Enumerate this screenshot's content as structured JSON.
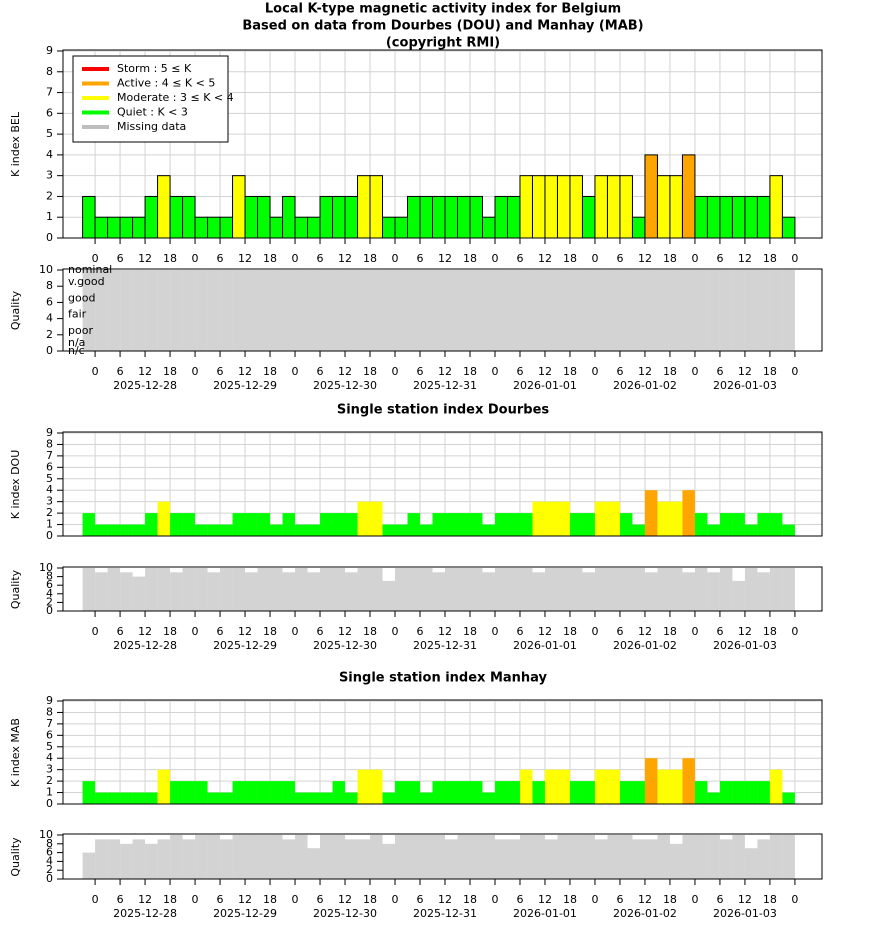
{
  "x_axis": {
    "xlim": [
      -7.7,
      174.5
    ],
    "bins": [
      -3,
      0,
      3,
      6,
      9,
      12,
      15,
      18,
      21,
      24,
      27,
      30,
      33,
      36,
      39,
      42,
      45,
      48,
      51,
      54,
      57,
      60,
      63,
      66,
      69,
      72,
      75,
      78,
      81,
      84,
      87,
      90,
      93,
      96,
      99,
      102,
      105,
      108,
      111,
      114,
      117,
      120,
      123,
      126,
      129,
      132,
      135,
      138,
      141,
      144,
      147,
      150,
      153,
      156,
      159,
      162,
      165,
      168
    ],
    "xticks": [
      0,
      6,
      12,
      18,
      {
        "value": 24,
        "label": "0"
      },
      {
        "value": 30,
        "label": "6"
      },
      {
        "value": 36,
        "label": "12"
      },
      {
        "value": 42,
        "label": "18"
      },
      {
        "value": 48,
        "label": "0"
      },
      {
        "value": 54,
        "label": "6"
      },
      {
        "value": 60,
        "label": "12"
      },
      {
        "value": 66,
        "label": "18"
      },
      {
        "value": 72,
        "label": "0"
      },
      {
        "value": 78,
        "label": "6"
      },
      {
        "value": 84,
        "label": "12"
      },
      {
        "value": 90,
        "label": "18"
      },
      {
        "value": 96,
        "label": "0"
      },
      {
        "value": 102,
        "label": "6"
      },
      {
        "value": 108,
        "label": "12"
      },
      {
        "value": 114,
        "label": "18"
      },
      {
        "value": 120,
        "label": "0"
      },
      {
        "value": 126,
        "label": "6"
      },
      {
        "value": 132,
        "label": "12"
      },
      {
        "value": 138,
        "label": "18"
      },
      {
        "value": 144,
        "label": "0"
      },
      {
        "value": 150,
        "label": "6"
      },
      {
        "value": 156,
        "label": "12"
      },
      {
        "value": 162,
        "label": "18"
      },
      {
        "value": 168,
        "label": "0"
      }
    ],
    "dates": [
      {
        "value": 12,
        "label": "2025-12-28"
      },
      {
        "value": 36,
        "label": "2025-12-29"
      },
      {
        "value": 60,
        "label": "2025-12-30"
      },
      {
        "value": 84,
        "label": "2025-12-31"
      },
      {
        "value": 108,
        "label": "2026-01-01"
      },
      {
        "value": 132,
        "label": "2026-01-02"
      },
      {
        "value": 156,
        "label": "2026-01-03"
      }
    ]
  },
  "chart_data": [
    {
      "type": "bar",
      "title": [
        "Local K-type magnetic activity index for Belgium",
        "Based on data from Dourbes (DOU) and Manhay (MAB)",
        "(copyright RMI)"
      ],
      "ylabel": "K index BEL",
      "ylim": [
        0,
        9
      ],
      "yticks": [
        0,
        1,
        2,
        3,
        4,
        5,
        6,
        7,
        8,
        9
      ],
      "grid": true,
      "outline": "#000000",
      "values": [
        2,
        1,
        1,
        1,
        1,
        2,
        3,
        2,
        2,
        1,
        1,
        1,
        3,
        2,
        2,
        1,
        2,
        1,
        1,
        2,
        2,
        2,
        3,
        3,
        1,
        1,
        2,
        2,
        2,
        2,
        2,
        2,
        1,
        2,
        2,
        3,
        3,
        3,
        3,
        3,
        2,
        3,
        3,
        3,
        1,
        4,
        3,
        3,
        4,
        2,
        2,
        2,
        2,
        2,
        2,
        3,
        1
      ],
      "colors": [
        "#00ff00",
        "#00ff00",
        "#00ff00",
        "#00ff00",
        "#00ff00",
        "#00ff00",
        "#ffff00",
        "#00ff00",
        "#00ff00",
        "#00ff00",
        "#00ff00",
        "#00ff00",
        "#ffff00",
        "#00ff00",
        "#00ff00",
        "#00ff00",
        "#00ff00",
        "#00ff00",
        "#00ff00",
        "#00ff00",
        "#00ff00",
        "#00ff00",
        "#ffff00",
        "#ffff00",
        "#00ff00",
        "#00ff00",
        "#00ff00",
        "#00ff00",
        "#00ff00",
        "#00ff00",
        "#00ff00",
        "#00ff00",
        "#00ff00",
        "#00ff00",
        "#00ff00",
        "#ffff00",
        "#ffff00",
        "#ffff00",
        "#ffff00",
        "#ffff00",
        "#00ff00",
        "#ffff00",
        "#ffff00",
        "#ffff00",
        "#00ff00",
        "#ffa500",
        "#ffff00",
        "#ffff00",
        "#ffa500",
        "#00ff00",
        "#00ff00",
        "#00ff00",
        "#00ff00",
        "#00ff00",
        "#00ff00",
        "#ffff00",
        "#00ff00"
      ],
      "legend": {
        "position": "top-left",
        "items": [
          {
            "name": "Storm : 5 ≤ K",
            "color": "#ff0000"
          },
          {
            "name": "Active : 4 ≤ K < 5",
            "color": "#ffa500"
          },
          {
            "name": "Moderate : 3 ≤ K < 4",
            "color": "#ffff00"
          },
          {
            "name": "Quiet : K < 3",
            "color": "#00ff00"
          },
          {
            "name": "Missing data",
            "color": "#bebebe"
          }
        ]
      }
    },
    {
      "type": "bar",
      "ylabel": "Quality",
      "ylim": [
        0,
        10
      ],
      "yticks": [
        0,
        2,
        4,
        6,
        8,
        10
      ],
      "color": "#d3d3d3",
      "values": [
        10,
        10,
        10,
        10,
        10,
        10,
        10,
        10,
        10,
        10,
        10,
        10,
        10,
        10,
        10,
        10,
        10,
        10,
        10,
        10,
        10,
        10,
        10,
        10,
        10,
        10,
        10,
        10,
        10,
        10,
        10,
        10,
        10,
        10,
        10,
        10,
        10,
        10,
        10,
        10,
        10,
        10,
        10,
        10,
        10,
        10,
        10,
        10,
        10,
        10,
        10,
        10,
        10,
        10,
        10,
        10,
        10
      ],
      "annotations": [
        {
          "value": 10,
          "label": "nominal"
        },
        {
          "value": 8.5,
          "label": "v.good"
        },
        {
          "value": 6.5,
          "label": "good"
        },
        {
          "value": 4.5,
          "label": "fair"
        },
        {
          "value": 2.5,
          "label": "poor"
        },
        {
          "value": 1,
          "label": "n/a"
        },
        {
          "value": 0,
          "label": "n/c"
        }
      ]
    },
    {
      "type": "bar",
      "title": "Single station index Dourbes",
      "ylabel": "K index DOU",
      "ylim": [
        0,
        9
      ],
      "yticks": [
        0,
        1,
        2,
        3,
        4,
        5,
        6,
        7,
        8,
        9
      ],
      "grid": true,
      "values": [
        2,
        1,
        1,
        1,
        1,
        2,
        3,
        2,
        2,
        1,
        1,
        1,
        2,
        2,
        2,
        1,
        2,
        1,
        1,
        2,
        2,
        2,
        3,
        3,
        1,
        1,
        2,
        1,
        2,
        2,
        2,
        2,
        1,
        2,
        2,
        2,
        3,
        3,
        3,
        2,
        2,
        3,
        3,
        2,
        1,
        4,
        3,
        3,
        4,
        2,
        1,
        2,
        2,
        1,
        2,
        2,
        1
      ],
      "colors": [
        "#00ff00",
        "#00ff00",
        "#00ff00",
        "#00ff00",
        "#00ff00",
        "#00ff00",
        "#ffff00",
        "#00ff00",
        "#00ff00",
        "#00ff00",
        "#00ff00",
        "#00ff00",
        "#00ff00",
        "#00ff00",
        "#00ff00",
        "#00ff00",
        "#00ff00",
        "#00ff00",
        "#00ff00",
        "#00ff00",
        "#00ff00",
        "#00ff00",
        "#ffff00",
        "#ffff00",
        "#00ff00",
        "#00ff00",
        "#00ff00",
        "#00ff00",
        "#00ff00",
        "#00ff00",
        "#00ff00",
        "#00ff00",
        "#00ff00",
        "#00ff00",
        "#00ff00",
        "#00ff00",
        "#ffff00",
        "#ffff00",
        "#ffff00",
        "#00ff00",
        "#00ff00",
        "#ffff00",
        "#ffff00",
        "#00ff00",
        "#00ff00",
        "#ffa500",
        "#ffff00",
        "#ffff00",
        "#ffa500",
        "#00ff00",
        "#00ff00",
        "#00ff00",
        "#00ff00",
        "#00ff00",
        "#00ff00",
        "#00ff00",
        "#00ff00"
      ]
    },
    {
      "type": "bar",
      "ylabel": "Quality",
      "ylim": [
        0,
        10
      ],
      "yticks": [
        0,
        2,
        4,
        6,
        8,
        10
      ],
      "color": "#d3d3d3",
      "values": [
        10,
        9,
        10,
        9,
        8,
        10,
        10,
        9,
        10,
        10,
        9,
        10,
        10,
        9,
        10,
        10,
        9,
        10,
        9,
        10,
        10,
        9,
        10,
        10,
        7,
        10,
        10,
        10,
        9,
        10,
        10,
        10,
        9,
        10,
        10,
        10,
        9,
        10,
        10,
        10,
        9,
        10,
        10,
        10,
        10,
        9,
        10,
        10,
        9,
        10,
        9,
        10,
        7,
        10,
        9,
        10,
        10
      ]
    },
    {
      "type": "bar",
      "title": "Single station index Manhay",
      "ylabel": "K index MAB",
      "ylim": [
        0,
        9
      ],
      "yticks": [
        0,
        1,
        2,
        3,
        4,
        5,
        6,
        7,
        8,
        9
      ],
      "grid": true,
      "values": [
        2,
        1,
        1,
        1,
        1,
        1,
        3,
        2,
        2,
        2,
        1,
        1,
        2,
        2,
        2,
        2,
        2,
        1,
        1,
        1,
        2,
        1,
        3,
        3,
        1,
        2,
        2,
        1,
        2,
        2,
        2,
        2,
        1,
        2,
        2,
        3,
        2,
        3,
        3,
        2,
        2,
        3,
        3,
        2,
        2,
        4,
        3,
        3,
        4,
        2,
        1,
        2,
        2,
        2,
        2,
        3,
        1
      ],
      "colors": [
        "#00ff00",
        "#00ff00",
        "#00ff00",
        "#00ff00",
        "#00ff00",
        "#00ff00",
        "#ffff00",
        "#00ff00",
        "#00ff00",
        "#00ff00",
        "#00ff00",
        "#00ff00",
        "#00ff00",
        "#00ff00",
        "#00ff00",
        "#00ff00",
        "#00ff00",
        "#00ff00",
        "#00ff00",
        "#00ff00",
        "#00ff00",
        "#00ff00",
        "#ffff00",
        "#ffff00",
        "#00ff00",
        "#00ff00",
        "#00ff00",
        "#00ff00",
        "#00ff00",
        "#00ff00",
        "#00ff00",
        "#00ff00",
        "#00ff00",
        "#00ff00",
        "#00ff00",
        "#ffff00",
        "#00ff00",
        "#ffff00",
        "#ffff00",
        "#00ff00",
        "#00ff00",
        "#ffff00",
        "#ffff00",
        "#00ff00",
        "#00ff00",
        "#ffa500",
        "#ffff00",
        "#ffff00",
        "#ffa500",
        "#00ff00",
        "#00ff00",
        "#00ff00",
        "#00ff00",
        "#00ff00",
        "#00ff00",
        "#ffff00",
        "#00ff00"
      ]
    },
    {
      "type": "bar",
      "ylabel": "Quality",
      "ylim": [
        0,
        10
      ],
      "yticks": [
        0,
        2,
        4,
        6,
        8,
        10
      ],
      "color": "#d3d3d3",
      "values": [
        6,
        9,
        9,
        8,
        9,
        8,
        9,
        10,
        9,
        10,
        10,
        9,
        10,
        10,
        10,
        10,
        9,
        10,
        7,
        10,
        10,
        9,
        9,
        10,
        8,
        10,
        10,
        10,
        10,
        9,
        10,
        10,
        10,
        9,
        9,
        10,
        10,
        9,
        10,
        10,
        10,
        9,
        10,
        10,
        9,
        9,
        10,
        8,
        10,
        10,
        10,
        9,
        10,
        7,
        9,
        10,
        10
      ]
    }
  ]
}
